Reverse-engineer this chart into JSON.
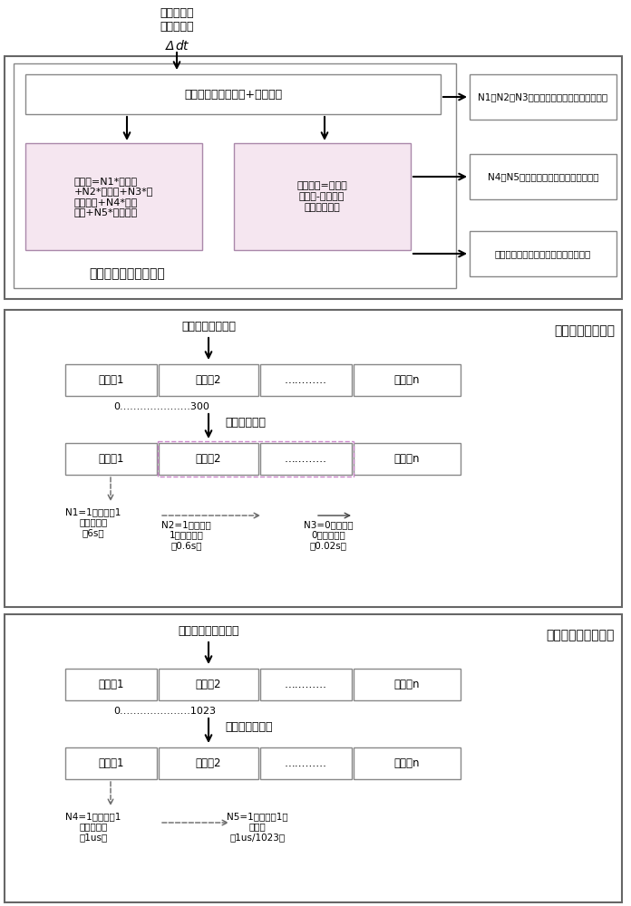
{
  "bg_color": "#ffffff",
  "border_color": "#888888",
  "box_color": "#ffffff",
  "pink_box_color": "#f5e6f0",
  "gray_box_color": "#e8e8e8",
  "text_color": "#000000",
  "section1": {
    "title": "时间偏差的精细化处理",
    "top_text1": "输入星地时",
    "top_text2": "间同步钟差",
    "delta_text": "Δdt",
    "main_box_text": "将钟差拆分为控制字+小数部分",
    "left_box_text": "控制字=N1*电文帧\n+N2*电文字+N3*电\n文数据位+N4*伪码\n长度+N5*码片长度",
    "right_box_text": "小数部分=星地同\n步钟差-控制字表\n示的钟差长度",
    "arrow1_text": "N1、N2和N3控制字写入伪卫星进行电文偏移",
    "arrow2_text": "N4和N5制字写入伪卫星进行码相位偏移",
    "arrow3_text": "小数部分写入伪卫星电文时钟修正参数"
  },
  "section2": {
    "title": "电文偏移处理过程",
    "init_text": "初始化时电文位置",
    "range_text": "0…………………300",
    "shift_text": "进行电文偏移",
    "frames1": [
      "电文帧1",
      "电文帧2",
      "…………",
      "电文帧n"
    ],
    "frames2": [
      "电文帧1",
      "电文帧2",
      "…………",
      "电文帧n"
    ],
    "ann1": "N1=1，向前移1\n个电文帧长\n（6s）",
    "ann2": "N2=1，向前移\n1个电文字长\n（0.6s）",
    "ann3": "N3=0，向前移\n0个电文位长\n（0.02s）"
  },
  "section3": {
    "title": "码相位偏移处理过程",
    "init_text": "初始化时码相位位置",
    "range_text": "0…………………1023",
    "shift_text": "进行码相位偏移",
    "codes1": [
      "扩频码1",
      "扩频码2",
      "…………",
      "扩频码n"
    ],
    "codes2": [
      "扩频码1",
      "扩频码2",
      "…………",
      "扩频码n"
    ],
    "ann1": "N4=1，向前移1\n个扩频码长\n（1us）",
    "ann2": "N5=1，向前移1个\n码片长\n（1us/1023）"
  }
}
